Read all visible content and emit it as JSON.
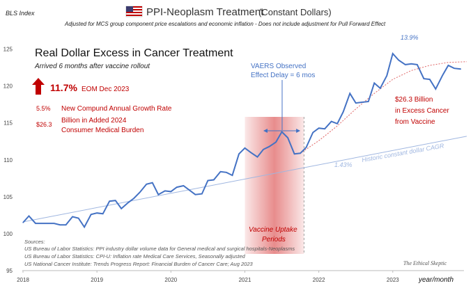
{
  "chart_data": {
    "type": "line",
    "title": "PPI-Neoplasm  Treatment",
    "title_suffix": "(Constant Dollars)",
    "subtitle": "Adjusted for MCS group component price escalations and economic inflation - Does not include adjustment for Pull Forward Effect",
    "ylabel": "BLS Index",
    "xlabel": "year/month",
    "ylim": [
      95,
      126
    ],
    "xlim": [
      2018.0,
      2024.0
    ],
    "yticks": [
      "95",
      "100",
      "105",
      "110",
      "115",
      "120",
      "125"
    ],
    "xticks": [
      "2018",
      "2019",
      "2020",
      "2021",
      "2022",
      "2023"
    ],
    "grid": false,
    "colors": {
      "main": "#4472c4",
      "trend": "#9fb6e0",
      "excess": "#e06666",
      "accent": "#c00000",
      "band": "#e06666",
      "flag": "#c00000"
    },
    "series": [
      {
        "x": [
          2018.0,
          2018.08,
          2018.17,
          2018.25,
          2018.33,
          2018.42,
          2018.5,
          2018.58,
          2018.67,
          2018.75,
          2018.83,
          2018.92,
          2019.0,
          2019.08,
          2019.17,
          2019.25,
          2019.33,
          2019.42,
          2019.5,
          2019.58,
          2019.67,
          2019.75,
          2019.83,
          2019.92,
          2020.0,
          2020.08,
          2020.17,
          2020.25,
          2020.33,
          2020.42,
          2020.5,
          2020.58,
          2020.67,
          2020.75,
          2020.83,
          2020.92,
          2021.0,
          2021.08,
          2021.17,
          2021.25,
          2021.33,
          2021.42,
          2021.5,
          2021.58,
          2021.67,
          2021.75,
          2021.83,
          2021.92,
          2022.0,
          2022.08,
          2022.17,
          2022.25,
          2022.33,
          2022.42,
          2022.5,
          2022.58,
          2022.67,
          2022.75,
          2022.83,
          2022.92,
          2023.0,
          2023.08,
          2023.17,
          2023.25,
          2023.33,
          2023.42,
          2023.5,
          2023.58,
          2023.67,
          2023.75,
          2023.83,
          2023.92
        ],
        "values": [
          101.5,
          102.4,
          101.4,
          101.4,
          101.4,
          101.4,
          101.2,
          101.2,
          102.3,
          102.1,
          100.9,
          102.6,
          102.8,
          102.7,
          104.4,
          104.5,
          103.4,
          104.2,
          104.8,
          105.6,
          106.7,
          106.9,
          105.3,
          105.8,
          105.7,
          106.3,
          106.5,
          105.9,
          105.3,
          105.4,
          107.2,
          107.3,
          108.4,
          108.3,
          107.9,
          110.8,
          111.6,
          111.0,
          110.4,
          111.4,
          111.8,
          112.4,
          113.8,
          113.0,
          110.8,
          110.9,
          111.7,
          113.7,
          114.3,
          114.2,
          115.2,
          114.9,
          116.5,
          119.0,
          117.7,
          117.8,
          117.9,
          120.4,
          119.7,
          121.4,
          124.4,
          123.5,
          122.9,
          123.0,
          122.9,
          121.0,
          120.9,
          119.6,
          121.4,
          122.8,
          122.4,
          122.3
        ]
      }
    ],
    "trend_label": "Historic constant dollar CAGR",
    "trend_value": "1.43%",
    "trend_line": {
      "start": [
        2018.0,
        101.6
      ],
      "end": [
        2024.0,
        113.2
      ]
    },
    "excess_line": {
      "x": [
        2021.75,
        2022.0,
        2022.25,
        2022.5,
        2022.75,
        2023.0,
        2023.25,
        2023.5,
        2023.75,
        2024.0
      ],
      "values": [
        110.9,
        112.6,
        114.6,
        116.9,
        119.0,
        120.9,
        122.1,
        122.8,
        123.2,
        123.3
      ]
    },
    "band": [
      2021.0,
      2021.8
    ],
    "delay_arrow": [
      2021.25,
      2021.75
    ]
  },
  "annotations": {
    "headline": "Real Dollar Excess in Cancer Treatment",
    "headline_sub": "Arrived 6 months after vaccine rollout",
    "pct": "11.7%",
    "pct_note": "EOM Dec 2023",
    "stat1_val": "5.5%",
    "stat1_text": "New Compund Annual Growth Rate",
    "stat2_val": "$26.3",
    "stat2_text1": "Billion in Added 2024",
    "stat2_text2": "Consumer Medical Burden",
    "vaers1": "VAERS Observed",
    "vaers2": "Effect Delay = 6 mos",
    "peak": "13.9%",
    "excess1": "$26.3 Billion",
    "excess2": "in Excess Cancer",
    "excess3": "from Vaccine",
    "band1": "Vaccine Uptake",
    "band2": "Periods",
    "sources_head": "Sources:",
    "source1": "US Bureau of Labor Statistics: PPI industry dollar volume data for General medical and surgical hospitals-Neoplasms",
    "source2": "US Bureau of Labor Statistics: CPI-U: Inflation rate Medical Care Services, Seasonally adjusted",
    "source3": "US National Cancer Institute: Trends Progress Report: Financial Burden of Cancer Care; Aug 2023",
    "watermark": "The Ethical Skeptic"
  }
}
